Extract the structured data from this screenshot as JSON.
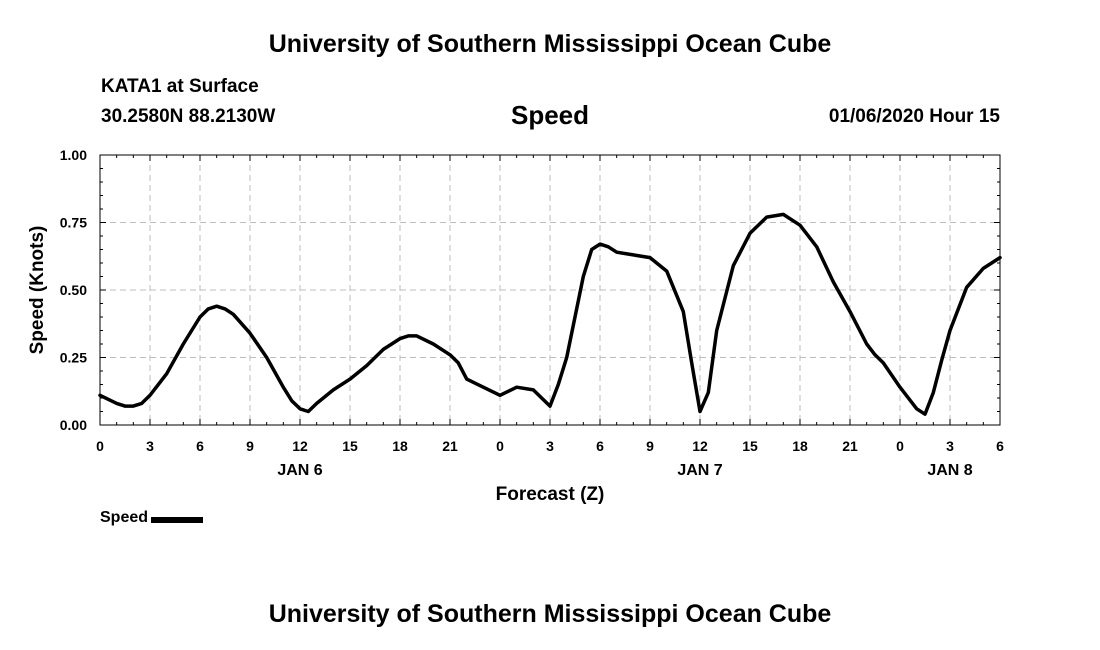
{
  "header": {
    "title": "University of Southern Mississippi Ocean Cube",
    "station": "KATA1 at Surface",
    "coordinates": "30.2580N 88.2130W",
    "stamp": "01/06/2020 Hour 15"
  },
  "footer": {
    "title": "University of Southern Mississippi Ocean Cube"
  },
  "chart_data": {
    "type": "line",
    "title": "Speed",
    "xlabel": "Forecast (Z)",
    "ylabel": "Speed (Knots)",
    "ylim": [
      0,
      1
    ],
    "xlim": [
      0,
      54
    ],
    "yticks": [
      "0.00",
      "0.25",
      "0.50",
      "0.75",
      "1.00"
    ],
    "xticks": [
      "0",
      "3",
      "6",
      "9",
      "12",
      "15",
      "18",
      "21",
      "0",
      "3",
      "6",
      "9",
      "12",
      "15",
      "18",
      "21",
      "0",
      "3",
      "6"
    ],
    "day_labels": [
      {
        "label": "JAN 6",
        "hour": 12
      },
      {
        "label": "JAN 7",
        "hour": 36
      },
      {
        "label": "JAN 8",
        "hour": 51
      }
    ],
    "grid": true,
    "legend_position": "bottom-left",
    "series": [
      {
        "name": "Speed",
        "color": "#000000",
        "x": [
          0,
          1,
          1.5,
          2,
          2.5,
          3,
          4,
          5,
          6,
          6.5,
          7,
          7.5,
          8,
          9,
          10,
          11,
          11.5,
          12,
          12.5,
          13,
          14,
          15,
          16,
          16.5,
          17,
          17.5,
          18,
          18.5,
          19,
          20,
          21,
          21.5,
          22,
          23,
          24,
          25,
          26,
          27,
          27.5,
          28,
          29,
          29.5,
          30,
          30.5,
          31,
          32,
          33,
          34,
          35,
          35.5,
          36,
          36.5,
          37,
          38,
          39,
          40,
          41,
          42,
          43,
          44,
          45,
          46,
          46.5,
          47,
          48,
          49,
          49.5,
          50,
          50.5,
          51,
          52,
          53,
          54
        ],
        "values": [
          0.11,
          0.08,
          0.07,
          0.07,
          0.08,
          0.11,
          0.19,
          0.3,
          0.4,
          0.43,
          0.44,
          0.43,
          0.41,
          0.34,
          0.25,
          0.14,
          0.09,
          0.06,
          0.05,
          0.08,
          0.13,
          0.17,
          0.22,
          0.25,
          0.28,
          0.3,
          0.32,
          0.33,
          0.33,
          0.3,
          0.26,
          0.23,
          0.17,
          0.14,
          0.11,
          0.14,
          0.13,
          0.07,
          0.15,
          0.25,
          0.55,
          0.65,
          0.67,
          0.66,
          0.64,
          0.63,
          0.62,
          0.57,
          0.42,
          0.23,
          0.05,
          0.12,
          0.35,
          0.59,
          0.71,
          0.77,
          0.78,
          0.74,
          0.66,
          0.53,
          0.42,
          0.3,
          0.26,
          0.23,
          0.14,
          0.06,
          0.04,
          0.12,
          0.24,
          0.35,
          0.51,
          0.58,
          0.62
        ]
      }
    ]
  }
}
